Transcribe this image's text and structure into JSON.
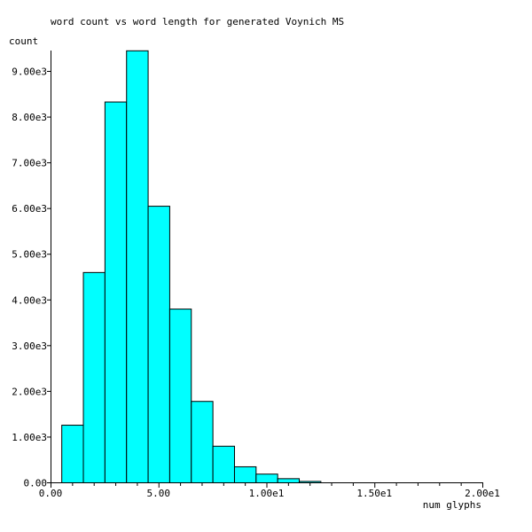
{
  "chart_data": {
    "type": "bar",
    "title": "word count vs word length for generated Voynich MS",
    "xlabel": "num glyphs",
    "ylabel": "count",
    "xlim": [
      0,
      20
    ],
    "ylim": [
      0,
      9450
    ],
    "grid": false,
    "bar_color": "#00ffff",
    "x_tick_labels": [
      {
        "value": 0,
        "label": "0.00"
      },
      {
        "value": 5,
        "label": "5.00"
      },
      {
        "value": 10,
        "label": "1.00e1"
      },
      {
        "value": 15,
        "label": "1.50e1"
      },
      {
        "value": 20,
        "label": "2.00e1"
      }
    ],
    "y_tick_labels": [
      {
        "value": 0,
        "label": "0.00"
      },
      {
        "value": 1000,
        "label": "1.00e3"
      },
      {
        "value": 2000,
        "label": "2.00e3"
      },
      {
        "value": 3000,
        "label": "3.00e3"
      },
      {
        "value": 4000,
        "label": "4.00e3"
      },
      {
        "value": 5000,
        "label": "5.00e3"
      },
      {
        "value": 6000,
        "label": "6.00e3"
      },
      {
        "value": 7000,
        "label": "7.00e3"
      },
      {
        "value": 8000,
        "label": "8.00e3"
      },
      {
        "value": 9000,
        "label": "9.00e3"
      }
    ],
    "bars": [
      {
        "x": 1,
        "value": 1260
      },
      {
        "x": 2,
        "value": 4600
      },
      {
        "x": 3,
        "value": 8330
      },
      {
        "x": 4,
        "value": 9450
      },
      {
        "x": 5,
        "value": 6050
      },
      {
        "x": 6,
        "value": 3800
      },
      {
        "x": 7,
        "value": 1780
      },
      {
        "x": 8,
        "value": 800
      },
      {
        "x": 9,
        "value": 350
      },
      {
        "x": 10,
        "value": 190
      },
      {
        "x": 11,
        "value": 90
      },
      {
        "x": 12,
        "value": 30
      }
    ]
  }
}
